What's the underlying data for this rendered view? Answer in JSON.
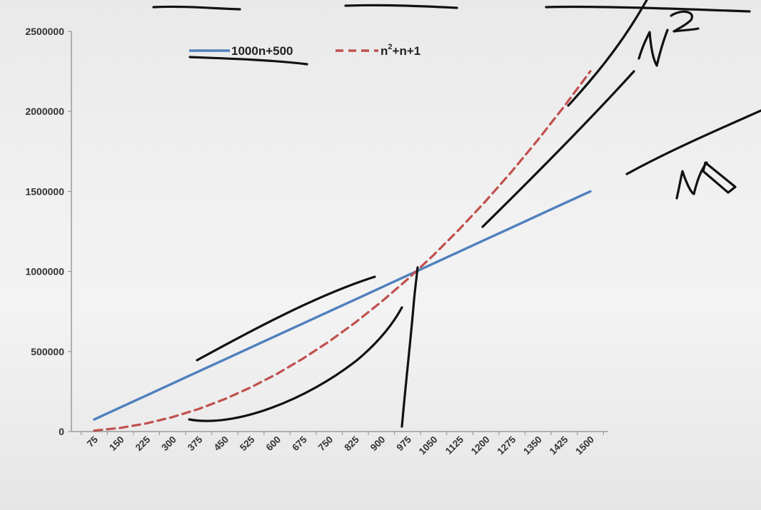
{
  "chart_data": {
    "type": "line",
    "title": "",
    "xlabel": "",
    "ylabel": "",
    "categories": [
      75,
      150,
      225,
      300,
      375,
      450,
      525,
      600,
      675,
      750,
      825,
      900,
      975,
      1050,
      1125,
      1200,
      1275,
      1350,
      1425,
      1500
    ],
    "ylim": [
      0,
      2500000
    ],
    "y_ticks": [
      "0",
      "500000",
      "1000000",
      "1500000",
      "2000000",
      "2500000"
    ],
    "grid": false,
    "legend_position": "top",
    "series": [
      {
        "name": "1000n+500",
        "name_parts": [
          "1000n+500"
        ],
        "style": "solid",
        "color": "#4f81bd",
        "values": [
          75500,
          150500,
          225500,
          300500,
          375500,
          450500,
          525500,
          600500,
          675500,
          750500,
          825500,
          900500,
          975500,
          1050500,
          1125500,
          1200500,
          1275500,
          1350500,
          1425500,
          1500500
        ]
      },
      {
        "name": "n²+n+1",
        "name_parts": [
          "n",
          "2",
          "+n+1"
        ],
        "style": "dashed",
        "color": "#c0504d",
        "values": [
          5701,
          22651,
          50851,
          90301,
          141001,
          202951,
          276151,
          360601,
          456301,
          563251,
          681451,
          810901,
          951601,
          1103551,
          1266751,
          1441201,
          1626901,
          1823851,
          2032051,
          2251501
        ]
      }
    ]
  }
}
